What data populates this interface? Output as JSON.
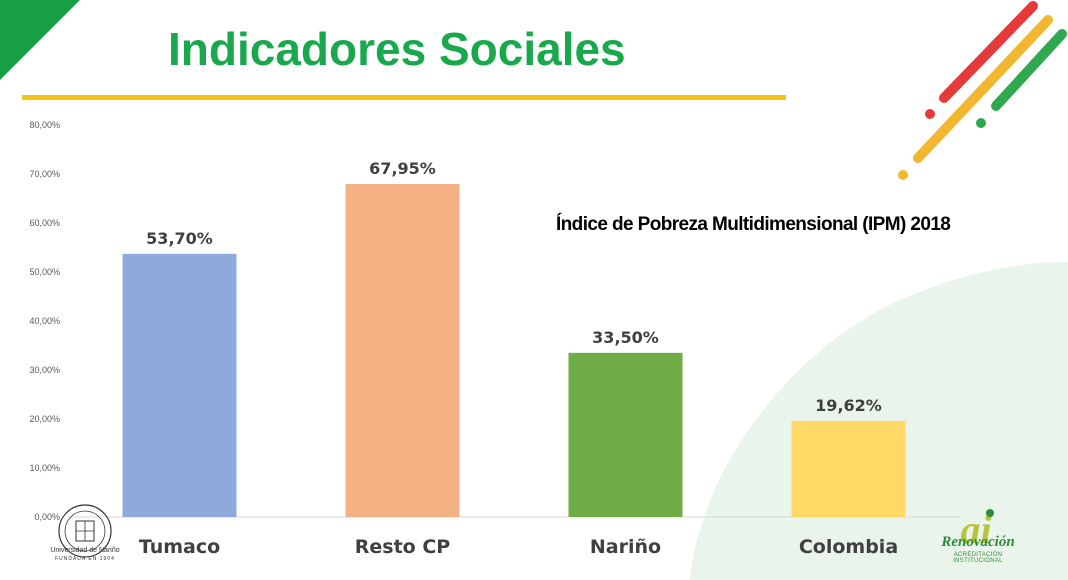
{
  "slide": {
    "title": "Indicadores Sociales",
    "colors": {
      "title": "#19a94c",
      "underline": "#f2c318",
      "corner": "#17a046",
      "blob": "#e9f4ea"
    }
  },
  "decoration": {
    "stripe_colors": [
      "#e63a3a",
      "#f2b630",
      "#2fa84f"
    ]
  },
  "chart_data": {
    "type": "bar",
    "title": "Índice de Pobreza Multidimensional (IPM) 2018",
    "categories": [
      "Tumaco",
      "Resto CP",
      "Nariño",
      "Colombia"
    ],
    "values": [
      53.7,
      67.95,
      33.5,
      19.62
    ],
    "data_labels": [
      "53,70%",
      "67,95%",
      "33,50%",
      "19,62%"
    ],
    "colors": [
      "#8eaadb",
      "#f4b183",
      "#70ad47",
      "#ffd966"
    ],
    "ylim": [
      0,
      80
    ],
    "yticks": [
      0,
      10,
      20,
      30,
      40,
      50,
      60,
      70,
      80
    ],
    "ytick_labels": [
      "0,00%",
      "10,00%",
      "20,00%",
      "30,00%",
      "40,00%",
      "50,00%",
      "60,00%",
      "70,00%",
      "80,00%"
    ],
    "grid": false,
    "legend": "none"
  },
  "logos": {
    "udenar": {
      "name": "Universidad de Nariño",
      "sub": "FUNDADA EN 1904"
    },
    "renovacion": {
      "mark": "ai",
      "name": "Renovación",
      "sub": "ACREDITACIÓN INSTITUCIONAL"
    }
  }
}
